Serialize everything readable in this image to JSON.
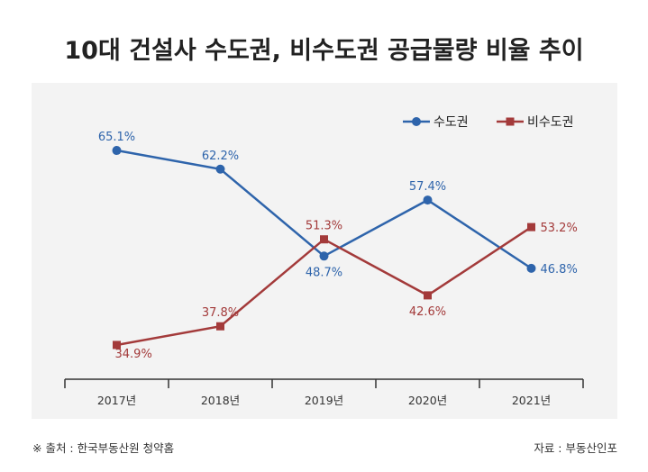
{
  "chart_data": {
    "type": "line",
    "title": "10대 건설사 수도권, 비수도권 공급물량 비율 추이",
    "categories": [
      "2017년",
      "2018년",
      "2019년",
      "2020년",
      "2021년"
    ],
    "series": [
      {
        "name": "수도권",
        "values": [
          65.1,
          62.2,
          48.7,
          57.4,
          46.8
        ],
        "labels": [
          "65.1%",
          "62.2%",
          "48.7%",
          "57.4%",
          "46.8%"
        ],
        "color": "#2e64ab",
        "marker": "circle"
      },
      {
        "name": "비수도권",
        "values": [
          34.9,
          37.8,
          51.3,
          42.6,
          53.2
        ],
        "labels": [
          "34.9%",
          "37.8%",
          "51.3%",
          "42.6%",
          "53.2%"
        ],
        "color": "#a33a3a",
        "marker": "square"
      }
    ],
    "ylim": [
      30,
      70
    ],
    "grid": false,
    "legend": "top-right",
    "background": "#f3f3f3"
  },
  "footer": {
    "source": "※ 출처 : 한국부동산원 청약홈",
    "credit": "자료 : 부동산인포"
  }
}
